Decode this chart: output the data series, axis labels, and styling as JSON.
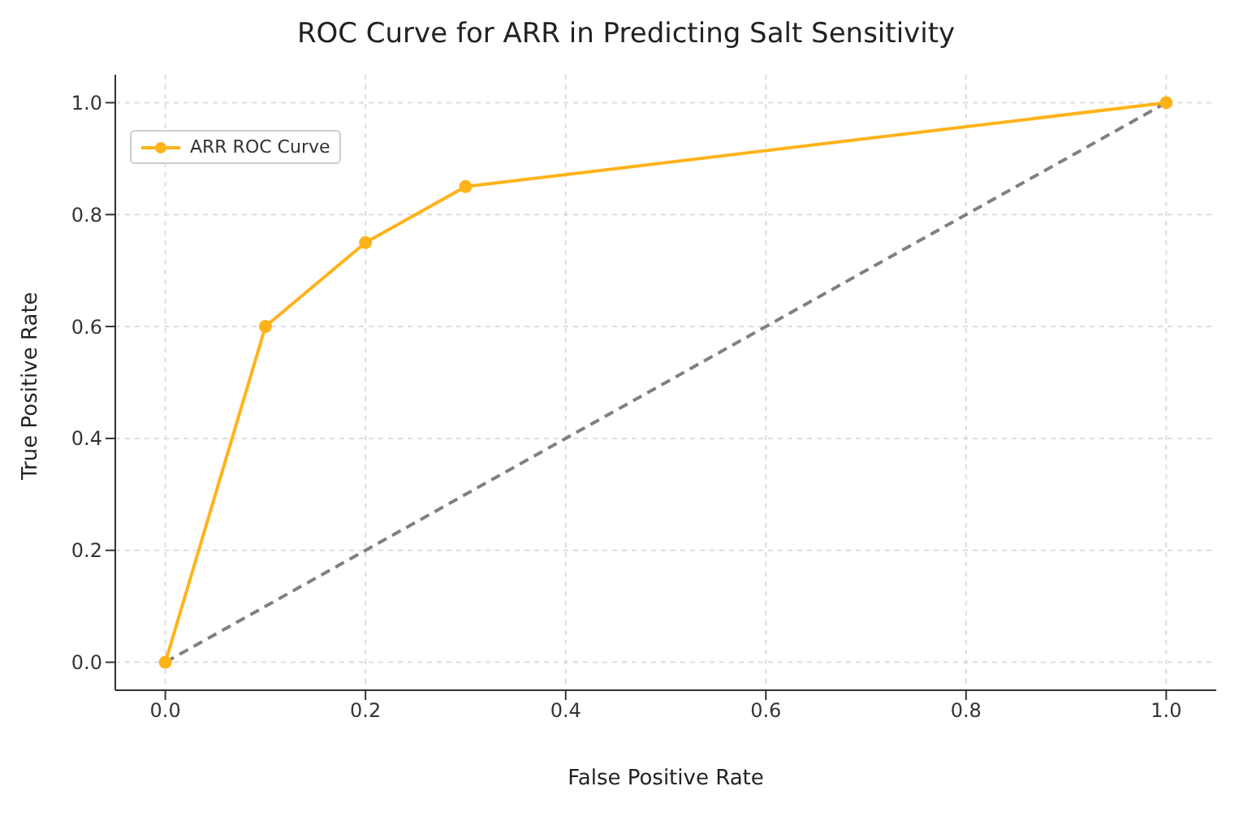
{
  "chart_data": {
    "type": "line",
    "title": "ROC Curve for ARR in Predicting Salt Sensitivity",
    "xlabel": "False Positive Rate",
    "ylabel": "True Positive Rate",
    "series": [
      {
        "name": "ARR ROC Curve",
        "color": "#ffb31a",
        "x": [
          0,
          0.1,
          0.2,
          0.3,
          1
        ],
        "values": [
          0,
          0.6,
          0.75,
          0.85,
          1
        ],
        "marker": "circle",
        "line_style": "solid"
      },
      {
        "color": "#808080",
        "x": [
          0,
          1
        ],
        "values": [
          0,
          1
        ],
        "marker": "none",
        "line_style": "dashed"
      }
    ],
    "xlim": [
      -0.05,
      1.05
    ],
    "ylim": [
      -0.05,
      1.05
    ],
    "xticks": [
      {
        "value": 0,
        "label": "0.0"
      },
      {
        "value": 0.2,
        "label": "0.2"
      },
      {
        "value": 0.4,
        "label": "0.4"
      },
      {
        "value": 0.6,
        "label": "0.6"
      },
      {
        "value": 0.8,
        "label": "0.8"
      },
      {
        "value": 1,
        "label": "1.0"
      }
    ],
    "yticks": [
      {
        "value": 0,
        "label": "0.0"
      },
      {
        "value": 0.2,
        "label": "0.2"
      },
      {
        "value": 0.4,
        "label": "0.4"
      },
      {
        "value": 0.6,
        "label": "0.6"
      },
      {
        "value": 0.8,
        "label": "0.8"
      },
      {
        "value": 1,
        "label": "1.0"
      }
    ],
    "grid": true,
    "legend": "top left"
  }
}
